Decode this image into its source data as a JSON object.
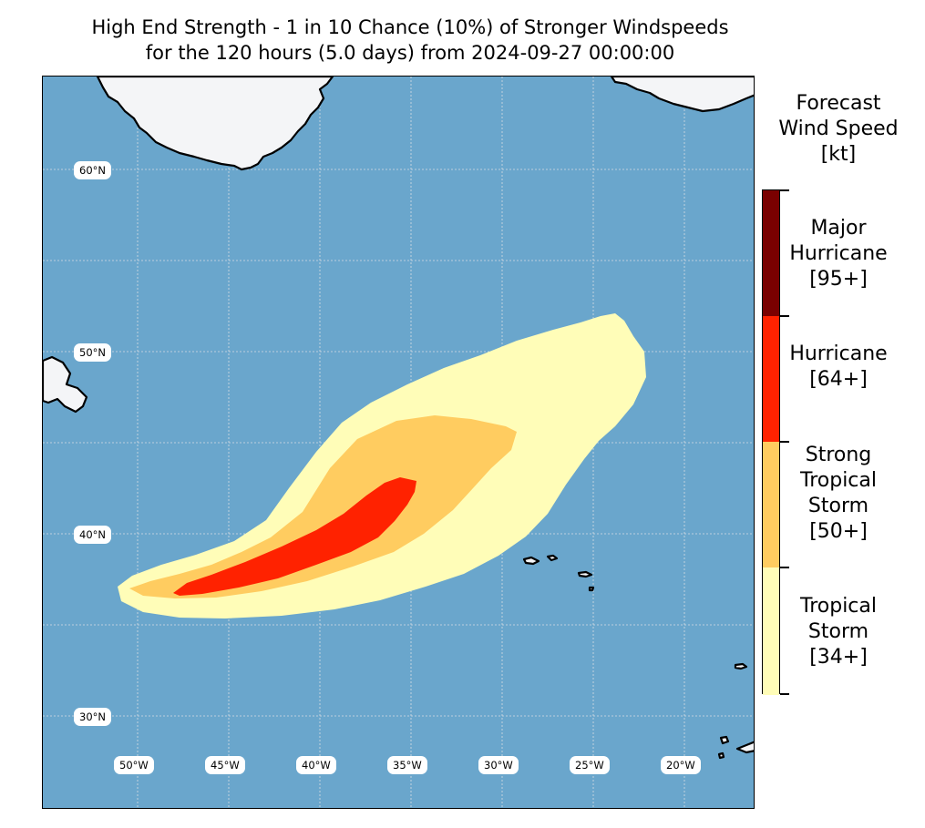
{
  "title": {
    "line1": "High End Strength - 1 in 10 Chance (10%) of Stronger Windspeeds",
    "line2": "for the 120 hours (5.0 days) from 2024-09-27 00:00:00"
  },
  "map": {
    "ocean_color": "#6aa6cc",
    "land_color": "#f4f5f7",
    "coast_color": "#000000",
    "gridlines": "dotted",
    "lat_labels": [
      "60°N",
      "50°N",
      "40°N",
      "30°N"
    ],
    "lon_labels": [
      "50°W",
      "45°W",
      "40°W",
      "35°W",
      "30°W",
      "25°W",
      "20°W"
    ]
  },
  "colorbar": {
    "title": [
      "Forecast",
      "Wind Speed",
      "[kt]"
    ],
    "categories": [
      {
        "name": "Major Hurricane",
        "threshold": "[95+]",
        "lines": [
          "Major",
          "Hurricane",
          "[95+]"
        ],
        "color": "#7a0000"
      },
      {
        "name": "Hurricane",
        "threshold": "[64+]",
        "lines": [
          "Hurricane",
          "[64+]"
        ],
        "color": "#ff2200"
      },
      {
        "name": "Strong Tropical Storm",
        "threshold": "[50+]",
        "lines": [
          "Strong",
          "Tropical",
          "Storm",
          "[50+]"
        ],
        "color": "#ffcc60"
      },
      {
        "name": "Tropical Storm",
        "threshold": "[34+]",
        "lines": [
          "Tropical",
          "Storm",
          "[34+]"
        ],
        "color": "#fffdb8"
      }
    ]
  }
}
